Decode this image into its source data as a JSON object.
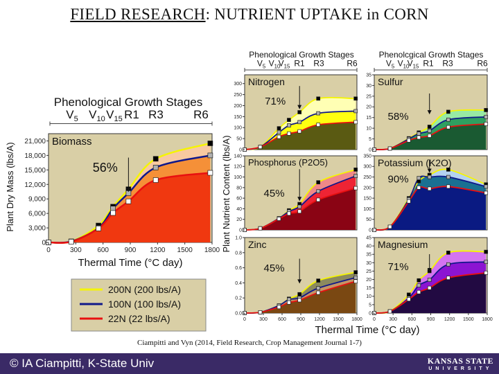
{
  "slide": {
    "title_prefix": "FIELD RESEARCH",
    "title_rest": ": NUTRIENT UPTAKE in CORN",
    "citation": "Ciampitti and Vyn (2014, Field Research, Crop Management Journal 1-7)",
    "footer_copyright": "© IA Ciampitti, K-State Univ",
    "logo_line1": "KANSAS STATE",
    "logo_line2": "UNIVERSITY"
  },
  "shared": {
    "stages_header_big": "Phenological Growth Stages",
    "stages_header_left": "Phenological Growth Stages",
    "stages_header_right": "Phenolcgical Growth Stages",
    "stages": [
      {
        "t": "V",
        "sub": "5"
      },
      {
        "t": "V",
        "sub": "10"
      },
      {
        "t": "V",
        "sub": "15"
      },
      {
        "t": "R1",
        "sub": ""
      },
      {
        "t": "R3",
        "sub": ""
      },
      {
        "t": "R6",
        "sub": ""
      }
    ],
    "panel_ylabel": "Plant Nutrient Content (lbs/A)",
    "panel_xlabel": "Thermal Time (°C day)",
    "legend": [
      {
        "label": "200N (200 lbs/A)",
        "color": "#f5f500"
      },
      {
        "label": "100N (100 lbs/A)",
        "color": "#10188a"
      },
      {
        "label": "22N (22 lbs/A)",
        "color": "#e81010"
      }
    ],
    "series_colors": {
      "200N": "#f5f500",
      "100N": "#10188a",
      "22N": "#e81010"
    },
    "marker_colors": {
      "200N": "#000000",
      "100N": "#b0b0b0",
      "22N": "#ffffff"
    },
    "plot_background": "#d9cfa6"
  },
  "chart_data": [
    {
      "type": "area",
      "title": "Biomass",
      "annotation": "56%",
      "arrow_at_x": 880,
      "xlabel": "Thermal Time (°C day)",
      "ylabel": "Plant Dry Mass (lbs/A)",
      "xlim": [
        0,
        1800
      ],
      "xticks": [
        0,
        300,
        600,
        900,
        1200,
        1500,
        1800
      ],
      "ylim": [
        0,
        22500
      ],
      "yticks": [
        0,
        3000,
        6000,
        9000,
        12000,
        15000,
        18000,
        21000
      ],
      "ytick_labels": [
        "0",
        "3,000",
        "6,000",
        "9,000",
        "12,000",
        "15,000",
        "18,000",
        "21,000"
      ],
      "x": [
        0,
        250,
        550,
        710,
        880,
        1180,
        1780
      ],
      "series": [
        {
          "name": "200N",
          "values": [
            0,
            200,
            3500,
            7400,
            11000,
            17300,
            20500
          ]
        },
        {
          "name": "100N",
          "values": [
            0,
            200,
            3000,
            7000,
            10200,
            15500,
            18000
          ]
        },
        {
          "name": "22N",
          "values": [
            0,
            150,
            2900,
            6100,
            8500,
            12900,
            14400
          ]
        }
      ],
      "fills": [
        "#f8c9a0",
        "#f59038",
        "#f03810"
      ]
    },
    {
      "type": "area",
      "title": "Nitrogen",
      "annotation": "71%",
      "arrow_at_x": 880,
      "xlim": [
        0,
        1800
      ],
      "ylim": [
        0,
        340
      ],
      "yticks": [
        0,
        50,
        100,
        150,
        200,
        250,
        300
      ],
      "ytick_labels": [
        "0",
        "50",
        "100",
        "150",
        "200",
        "250",
        "300"
      ],
      "x": [
        0,
        250,
        550,
        710,
        880,
        1180,
        1780
      ],
      "series": [
        {
          "name": "200N",
          "values": [
            0,
            12,
            97,
            135,
            170,
            232,
            232
          ]
        },
        {
          "name": "100N",
          "values": [
            0,
            12,
            78,
            110,
            125,
            165,
            175
          ]
        },
        {
          "name": "22N",
          "values": [
            0,
            12,
            58,
            73,
            83,
            113,
            125
          ]
        }
      ],
      "fills": [
        "#ffffb4",
        "#ffff10",
        "#5a5a12"
      ]
    },
    {
      "type": "area",
      "title": "Sulfur",
      "annotation": "58%",
      "arrow_at_x": 880,
      "xlim": [
        0,
        1800
      ],
      "ylim": [
        0,
        35
      ],
      "yticks": [
        0,
        5,
        10,
        15,
        20,
        25,
        30,
        35
      ],
      "ytick_labels": [
        "0",
        "5",
        "10",
        "15",
        "20",
        "25",
        "30",
        "35"
      ],
      "x": [
        0,
        250,
        550,
        710,
        880,
        1180,
        1780
      ],
      "series": [
        {
          "name": "200N",
          "values": [
            0,
            0.5,
            5.3,
            8,
            10.7,
            17.7,
            18.5
          ]
        },
        {
          "name": "100N",
          "values": [
            0,
            0.5,
            5,
            7.5,
            8.8,
            14,
            15.3
          ]
        },
        {
          "name": "22N",
          "values": [
            0,
            0.5,
            4.3,
            5.7,
            6.5,
            10.5,
            12
          ]
        }
      ],
      "fills": [
        "#98eaa4",
        "#2fa060",
        "#1a5a32"
      ]
    },
    {
      "type": "area",
      "title": "Phosphorus (P2O5)",
      "annotation": "45%",
      "arrow_at_x": 880,
      "xlim": [
        0,
        1800
      ],
      "ylim": [
        0,
        140
      ],
      "yticks": [
        0,
        20,
        40,
        60,
        80,
        100,
        120,
        140
      ],
      "ytick_labels": [
        "0",
        "20",
        "40",
        "60",
        "80",
        "100",
        "120",
        "140"
      ],
      "x": [
        0,
        250,
        550,
        710,
        880,
        1180,
        1780
      ],
      "series": [
        {
          "name": "200N",
          "values": [
            0,
            3,
            22,
            37,
            49,
            90,
            114
          ]
        },
        {
          "name": "100N",
          "values": [
            0,
            3,
            22,
            35,
            44,
            73,
            102
          ]
        },
        {
          "name": "22N",
          "values": [
            0,
            3,
            21,
            31,
            35,
            57,
            79
          ]
        }
      ],
      "fills": [
        "#f08888",
        "#ee2434",
        "#8a0414"
      ]
    },
    {
      "type": "area",
      "title": "Potassium (K2O)",
      "annotation": "90%",
      "arrow_at_x": 880,
      "xlim": [
        0,
        1800
      ],
      "ylim": [
        0,
        350
      ],
      "yticks": [
        0,
        50,
        100,
        150,
        200,
        250,
        300,
        350
      ],
      "ytick_labels": [
        "0",
        "50",
        "100",
        "150",
        "200",
        "250",
        "300",
        "350"
      ],
      "x": [
        0,
        250,
        550,
        710,
        880,
        1180,
        1780
      ],
      "series": [
        {
          "name": "200N",
          "values": [
            0,
            15,
            150,
            230,
            260,
            285,
            215
          ]
        },
        {
          "name": "100N",
          "values": [
            0,
            15,
            145,
            245,
            250,
            250,
            205
          ]
        },
        {
          "name": "22N",
          "values": [
            0,
            15,
            135,
            200,
            195,
            205,
            175
          ]
        }
      ],
      "fills": [
        "#b4d2f0",
        "#1a7092",
        "#0a1a82"
      ]
    },
    {
      "type": "area",
      "title": "Zinc",
      "annotation": "45%",
      "arrow_at_x": 880,
      "xlim": [
        0,
        1800
      ],
      "xticks": [
        0,
        300,
        600,
        900,
        1200,
        1500,
        1800
      ],
      "ylim": [
        0,
        1.0
      ],
      "yticks": [
        0,
        0.2,
        0.4,
        0.6,
        0.8,
        1.0
      ],
      "ytick_labels": [
        "0.0",
        "0.2",
        "0.4",
        "0.6",
        "0.8",
        "1.0"
      ],
      "x": [
        0,
        250,
        550,
        710,
        880,
        1180,
        1780
      ],
      "series": [
        {
          "name": "200N",
          "values": [
            0,
            0.01,
            0.1,
            0.19,
            0.25,
            0.43,
            0.54
          ]
        },
        {
          "name": "100N",
          "values": [
            0,
            0.01,
            0.1,
            0.18,
            0.2,
            0.33,
            0.47
          ]
        },
        {
          "name": "22N",
          "values": [
            0,
            0.01,
            0.08,
            0.14,
            0.17,
            0.27,
            0.42
          ]
        }
      ],
      "fills": [
        "#8c8a5e",
        "#c49464",
        "#7a4812"
      ]
    },
    {
      "type": "area",
      "title": "Magnesium",
      "annotation": "71%",
      "arrow_at_x": 880,
      "xlim": [
        0,
        1800
      ],
      "xticks": [
        0,
        300,
        600,
        900,
        1200,
        1500,
        1800
      ],
      "ylim": [
        0,
        45
      ],
      "yticks": [
        0,
        5,
        10,
        15,
        20,
        25,
        30,
        35,
        40,
        45
      ],
      "ytick_labels": [
        "0",
        "5",
        "10",
        "15",
        "20",
        "25",
        "30",
        "35",
        "40",
        "45"
      ],
      "x": [
        0,
        250,
        550,
        710,
        880,
        1180,
        1780
      ],
      "series": [
        {
          "name": "200N",
          "values": [
            0,
            1,
            11,
            19.5,
            25,
            36,
            36.5
          ]
        },
        {
          "name": "100N",
          "values": [
            0,
            1,
            9,
            16.5,
            19.8,
            29,
            30.5
          ]
        },
        {
          "name": "22N",
          "values": [
            0,
            1,
            8.2,
            12.5,
            15,
            21,
            24
          ]
        }
      ],
      "fills": [
        "#d474f0",
        "#8c14d2",
        "#220a42"
      ]
    }
  ]
}
